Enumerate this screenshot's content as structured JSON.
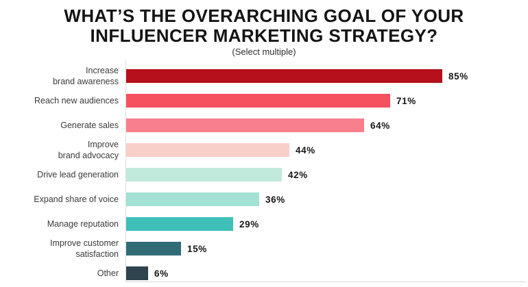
{
  "chart_data": {
    "type": "bar",
    "orientation": "horizontal",
    "title": "WHAT’S THE OVERARCHING GOAL OF YOUR\nINFLUENCER MARKETING STRATEGY?",
    "subtitle": "(Select multiple)",
    "unit": "%",
    "xlim": [
      0,
      100
    ],
    "grid": false,
    "legend": "none",
    "axis_color": "#dcdcdc",
    "categories": [
      "Increase brand awareness",
      "Reach new audiences",
      "Generate sales",
      "Improve brand advocacy",
      "Drive lead generation",
      "Expand share of voice",
      "Manage reputation",
      "Improve customer satisfaction",
      "Other"
    ],
    "values": [
      85,
      71,
      64,
      44,
      42,
      36,
      29,
      15,
      6
    ],
    "rows": [
      {
        "label": "Increase\nbrand awareness",
        "value": 85,
        "value_label": "85%",
        "color": "#B5101B"
      },
      {
        "label": "Reach new audiences",
        "value": 71,
        "value_label": "71%",
        "color": "#F5515F"
      },
      {
        "label": "Generate sales",
        "value": 64,
        "value_label": "64%",
        "color": "#F8808C"
      },
      {
        "label": "Improve\nbrand advocacy",
        "value": 44,
        "value_label": "44%",
        "color": "#F9CFCA"
      },
      {
        "label": "Drive lead generation",
        "value": 42,
        "value_label": "42%",
        "color": "#C1EADD"
      },
      {
        "label": "Expand share of voice",
        "value": 36,
        "value_label": "36%",
        "color": "#A3E2D5"
      },
      {
        "label": "Manage reputation",
        "value": 29,
        "value_label": "29%",
        "color": "#3EC0B8"
      },
      {
        "label": "Improve customer\nsatisfaction",
        "value": 15,
        "value_label": "15%",
        "color": "#316C76"
      },
      {
        "label": "Other",
        "value": 6,
        "value_label": "6%",
        "color": "#2F434E"
      }
    ]
  }
}
